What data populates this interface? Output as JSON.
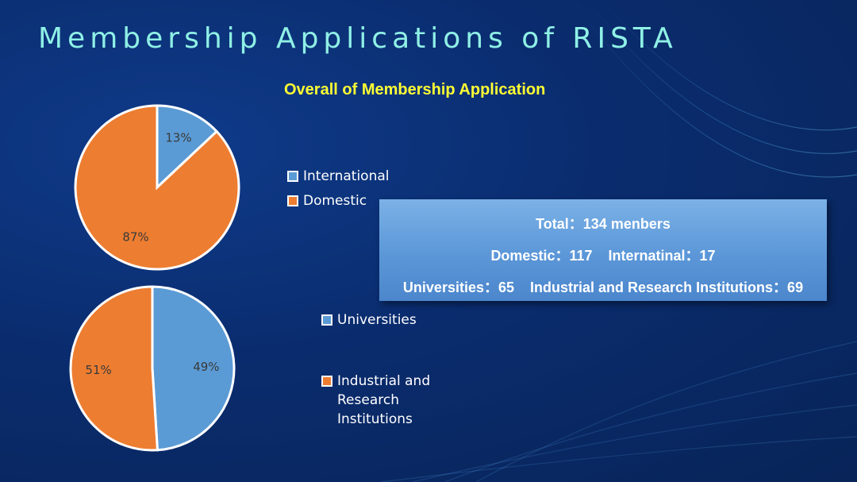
{
  "slide": {
    "title": "Membership Applications of RISTA",
    "subtitle": "Overall of Membership Application"
  },
  "colors": {
    "blue_slice": "#5b9bd5",
    "orange_slice": "#ed7d31",
    "title": "#8ff0e6",
    "subtitle": "#ffff33"
  },
  "chart_data": [
    {
      "type": "pie",
      "title": "",
      "slices": [
        {
          "label": "International",
          "value": 13,
          "display": "13%",
          "color": "#5b9bd5"
        },
        {
          "label": "Domestic",
          "value": 87,
          "display": "87%",
          "color": "#ed7d31"
        }
      ],
      "legend": "right"
    },
    {
      "type": "pie",
      "title": "",
      "slices": [
        {
          "label": "Universities",
          "value": 49,
          "display": "49%",
          "color": "#5b9bd5"
        },
        {
          "label": "Industrial and Research Institutions",
          "value": 51,
          "display": "51%",
          "color": "#ed7d31"
        }
      ],
      "legend": "right"
    }
  ],
  "legend": {
    "international": "International",
    "domestic": "Domestic",
    "universities": "Universities",
    "industrial_line1": "Industrial and",
    "industrial_line2": "Research",
    "industrial_line3": "Institutions"
  },
  "stats": {
    "total": "Total：134 menbers",
    "domestic": "Domestic：117",
    "international": "Internatinal：17",
    "universities": "Universities：65",
    "industrial": "Industrial and Research Institutions：69"
  }
}
